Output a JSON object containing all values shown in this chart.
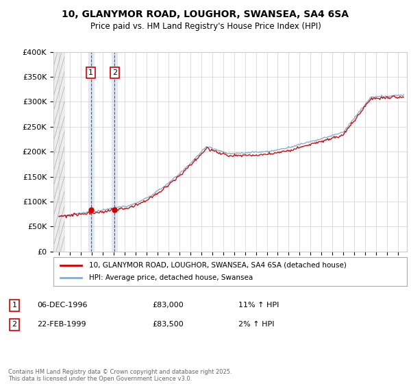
{
  "title1": "10, GLANYMOR ROAD, LOUGHOR, SWANSEA, SA4 6SA",
  "title2": "Price paid vs. HM Land Registry's House Price Index (HPI)",
  "legend_label1": "10, GLANYMOR ROAD, LOUGHOR, SWANSEA, SA4 6SA (detached house)",
  "legend_label2": "HPI: Average price, detached house, Swansea",
  "price_color": "#cc0000",
  "hpi_color": "#88aacc",
  "transaction1_date": "06-DEC-1996",
  "transaction1_price": "£83,000",
  "transaction1_hpi": "11% ↑ HPI",
  "transaction2_date": "22-FEB-1999",
  "transaction2_price": "£83,500",
  "transaction2_hpi": "2% ↑ HPI",
  "footer": "Contains HM Land Registry data © Crown copyright and database right 2025.\nThis data is licensed under the Open Government Licence v3.0.",
  "ylim": [
    0,
    400000
  ],
  "yticks": [
    0,
    50000,
    100000,
    150000,
    200000,
    250000,
    300000,
    350000,
    400000
  ],
  "background_color": "#ffffff"
}
